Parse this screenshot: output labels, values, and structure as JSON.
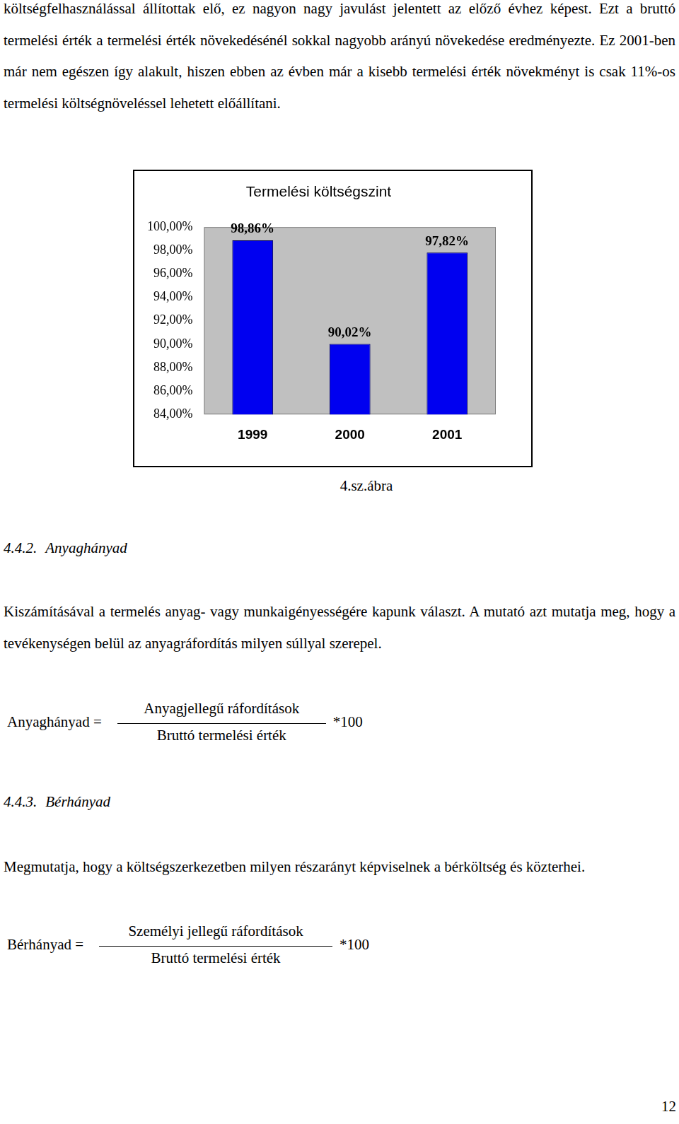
{
  "intro": "költségfelhasználással állítottak elő, ez nagyon nagy javulást jelentett az előző évhez képest. Ezt a bruttó termelési érték a termelési érték növekedésénél sokkal nagyobb arányú növekedése eredményezte. Ez 2001-ben már nem egészen így alakult, hiszen ebben az évben már a kisebb termelési érték növekményt is csak 11%-os termelési költségnöveléssel lehetett előállítani.",
  "chart_data": {
    "type": "bar",
    "title": "Termelési költségszint",
    "categories": [
      "1999",
      "2000",
      "2001"
    ],
    "values": [
      98.86,
      90.02,
      97.82
    ],
    "value_labels": [
      "98,86%",
      "90,02%",
      "97,82%"
    ],
    "color": "#0000f0",
    "ylim": [
      84,
      100
    ],
    "yticks": [
      {
        "value": 84,
        "label": "84,00%"
      },
      {
        "value": 86,
        "label": "86,00%"
      },
      {
        "value": 88,
        "label": "88,00%"
      },
      {
        "value": 90,
        "label": "90,00%"
      },
      {
        "value": 92,
        "label": "92,00%"
      },
      {
        "value": 94,
        "label": "94,00%"
      },
      {
        "value": 96,
        "label": "96,00%"
      },
      {
        "value": 98,
        "label": "98,00%"
      },
      {
        "value": 100,
        "label": "100,00%"
      }
    ],
    "grid": false,
    "data_labels": true
  },
  "figure_caption": "4.sz.ábra",
  "sections": [
    {
      "number": "4.4.2.",
      "title": "Anyaghányad",
      "text": "Kiszámításával a termelés anyag- vagy munkaigényességére kapunk választ. A mutató azt mutatja meg, hogy a tevékenységen belül az anyagráfordítás milyen súllyal szerepel.",
      "formula": {
        "lhs": "Anyaghányad =",
        "numerator": "Anyagjellegű ráfordítások",
        "denominator": "Bruttó termelési érték",
        "factor": "*100"
      }
    },
    {
      "number": "4.4.3.",
      "title": "Bérhányad",
      "text": "Megmutatja, hogy a költségszerkezetben milyen részarányt képviselnek a bérköltség és közterhei.",
      "formula": {
        "lhs": "Bérhányad =",
        "numerator": "Személyi jellegű ráfordítások",
        "denominator": "Bruttó termelési érték",
        "factor": "*100"
      }
    }
  ],
  "page_number": 12
}
